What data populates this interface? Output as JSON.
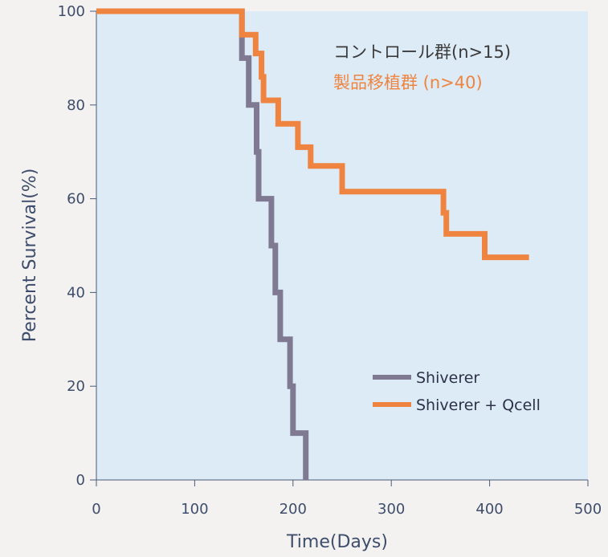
{
  "chart_data": {
    "type": "line",
    "subtype": "kaplan-meier step curve",
    "xlabel": "Time(Days)",
    "ylabel": "Percent Survival(%)",
    "xlim": [
      0,
      500
    ],
    "ylim": [
      0,
      100
    ],
    "xticks": [
      0,
      100,
      200,
      300,
      400,
      500
    ],
    "yticks": [
      0,
      20,
      40,
      60,
      80,
      100
    ],
    "grid": false,
    "background_color": "#ddebf7",
    "group_annotations": [
      {
        "text": "コントロール群(n>15)",
        "color": "#3a3a3a"
      },
      {
        "text": "製品移植群 (n>40)",
        "color": "#ee8440"
      }
    ],
    "legend": {
      "position": "bottom-right",
      "entries": [
        {
          "label": "Shiverer",
          "color": "#7f7a92"
        },
        {
          "label": "Shiverer + Qcell",
          "color": "#ee8440"
        }
      ]
    },
    "series": [
      {
        "name": "Shiverer",
        "color": "#7f7a92",
        "steps": [
          [
            0,
            100
          ],
          [
            148,
            100
          ],
          [
            148,
            90
          ],
          [
            155,
            90
          ],
          [
            155,
            80
          ],
          [
            163,
            80
          ],
          [
            163,
            70
          ],
          [
            165,
            70
          ],
          [
            165,
            60
          ],
          [
            178,
            60
          ],
          [
            178,
            50
          ],
          [
            182,
            50
          ],
          [
            182,
            40
          ],
          [
            187,
            40
          ],
          [
            187,
            30
          ],
          [
            197,
            30
          ],
          [
            197,
            20
          ],
          [
            200,
            20
          ],
          [
            200,
            10
          ],
          [
            213,
            10
          ],
          [
            213,
            0
          ]
        ]
      },
      {
        "name": "Shiverer + Qcell",
        "color": "#ee8440",
        "steps": [
          [
            0,
            100
          ],
          [
            148,
            100
          ],
          [
            148,
            95
          ],
          [
            162,
            95
          ],
          [
            162,
            91
          ],
          [
            168,
            91
          ],
          [
            168,
            86
          ],
          [
            170,
            86
          ],
          [
            170,
            81
          ],
          [
            185,
            81
          ],
          [
            185,
            76
          ],
          [
            205,
            76
          ],
          [
            205,
            71
          ],
          [
            218,
            71
          ],
          [
            218,
            67
          ],
          [
            250,
            67
          ],
          [
            250,
            61.5
          ],
          [
            353,
            61.5
          ],
          [
            353,
            57
          ],
          [
            356,
            57
          ],
          [
            356,
            52.5
          ],
          [
            395,
            52.5
          ],
          [
            395,
            47.5
          ],
          [
            440,
            47.5
          ]
        ]
      }
    ]
  }
}
